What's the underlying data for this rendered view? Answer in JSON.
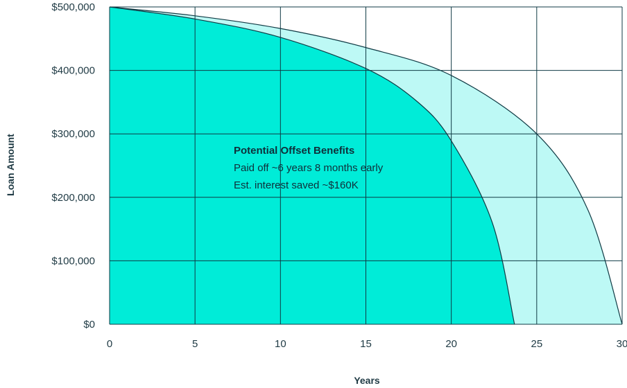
{
  "chart_data": {
    "type": "area",
    "xlabel": "Years",
    "ylabel": "Loan Amount",
    "xlim": [
      0,
      30
    ],
    "ylim": [
      0,
      500000
    ],
    "x_ticks": [
      0,
      5,
      10,
      15,
      20,
      25,
      30
    ],
    "x_tick_labels": [
      "0",
      "5",
      "10",
      "15",
      "20",
      "25",
      "30"
    ],
    "y_ticks": [
      0,
      100000,
      200000,
      300000,
      400000,
      500000
    ],
    "y_tick_labels": [
      "$0",
      "$100,000",
      "$200,000",
      "$300,000",
      "$400,000",
      "$500,000"
    ],
    "grid": true,
    "series": [
      {
        "color": "#bdf9f5",
        "points": [
          [
            0,
            500000
          ],
          [
            5,
            486000
          ],
          [
            10,
            466000
          ],
          [
            15,
            436000
          ],
          [
            20,
            392000
          ],
          [
            25,
            300000
          ],
          [
            28,
            180000
          ],
          [
            30,
            0
          ]
        ]
      },
      {
        "color": "#00ecd8",
        "points": [
          [
            0,
            500000
          ],
          [
            5,
            481000
          ],
          [
            10,
            452000
          ],
          [
            15,
            403000
          ],
          [
            18,
            351000
          ],
          [
            20,
            289000
          ],
          [
            22.4,
            160000
          ],
          [
            23.7,
            0
          ]
        ]
      }
    ],
    "annotation": {
      "title": "Potential Offset Benefits",
      "lines": [
        "Paid off ~6 years 8 months early",
        "Est. interest saved ~$160K"
      ]
    },
    "colors": {
      "grid": "#0f3a44",
      "text": "#1f3a44"
    }
  }
}
